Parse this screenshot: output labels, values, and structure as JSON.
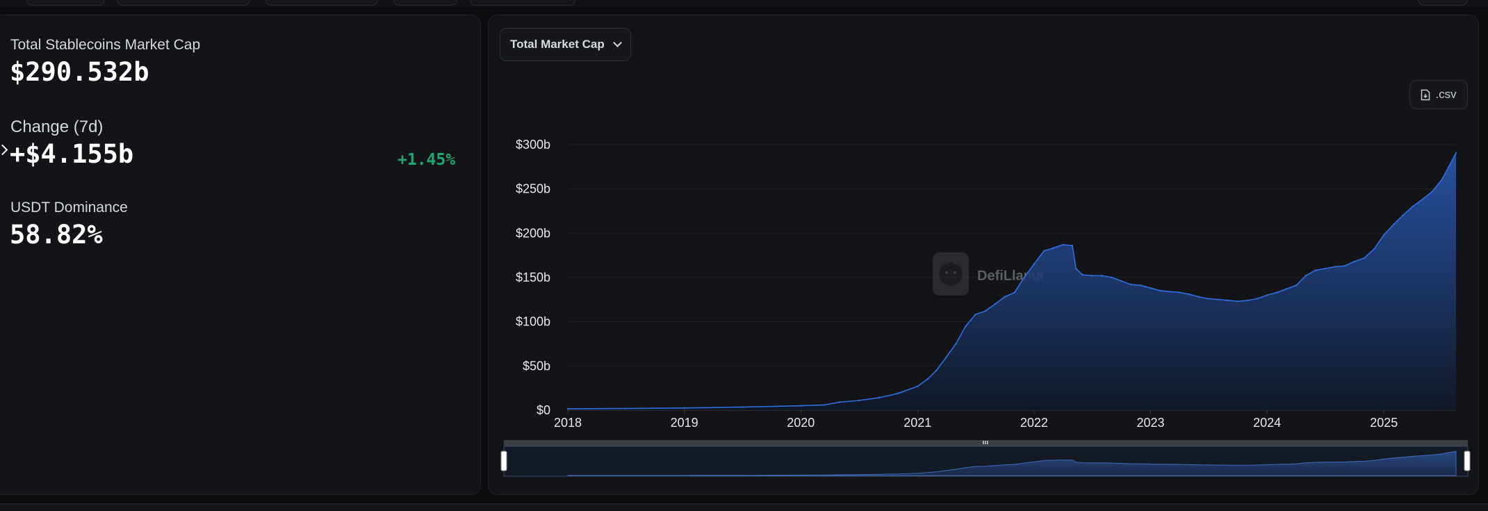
{
  "stats": {
    "market_cap_label": "Total Stablecoins Market Cap",
    "market_cap_value": "$290.532b",
    "change_label": "Change (7d)",
    "change_value": "+$4.155b",
    "change_pct": "+1.45%",
    "dominance_label": "USDT Dominance",
    "dominance_value": "58.82%"
  },
  "controls": {
    "metric_selected": "Total Market Cap",
    "csv_label": ".csv"
  },
  "watermark": "DefiLlama",
  "colors": {
    "series": "#2f6fdc",
    "positive": "#1fa76f",
    "background": "#131417"
  },
  "icons": [
    "chevron-down-icon",
    "download-file-icon",
    "llama-logo-icon",
    "chevron-right-icon",
    "range-handle-icon"
  ],
  "chart_data": {
    "type": "area",
    "title": "",
    "xlabel": "",
    "ylabel": "",
    "ylim": [
      0,
      300
    ],
    "yticks": [
      "$0",
      "$50b",
      "$100b",
      "$150b",
      "$200b",
      "$250b",
      "$300b"
    ],
    "xticks": [
      "2018",
      "2019",
      "2020",
      "2021",
      "2022",
      "2023",
      "2024",
      "2025"
    ],
    "xlim": [
      "2018-01-01",
      "2025-08-15"
    ],
    "grid": true,
    "legend": "none",
    "series": [
      {
        "x": [
          "2018-01-01",
          "2018-07-01",
          "2019-01-01",
          "2019-07-01",
          "2020-01-01",
          "2020-03-15",
          "2020-05-01",
          "2020-07-01",
          "2020-09-01",
          "2020-11-01",
          "2021-01-01",
          "2021-02-01",
          "2021-03-01",
          "2021-04-01",
          "2021-05-01",
          "2021-06-01",
          "2021-07-01",
          "2021-08-01",
          "2021-09-01",
          "2021-10-01",
          "2021-11-01",
          "2021-12-01",
          "2022-01-01",
          "2022-02-01",
          "2022-03-01",
          "2022-04-01",
          "2022-05-01",
          "2022-05-12",
          "2022-06-01",
          "2022-07-01",
          "2022-08-01",
          "2022-09-01",
          "2022-10-01",
          "2022-11-01",
          "2022-12-01",
          "2023-01-01",
          "2023-02-01",
          "2023-03-01",
          "2023-04-01",
          "2023-05-01",
          "2023-06-01",
          "2023-07-01",
          "2023-08-01",
          "2023-09-01",
          "2023-10-01",
          "2023-11-01",
          "2023-12-01",
          "2024-01-01",
          "2024-02-01",
          "2024-03-01",
          "2024-04-01",
          "2024-05-01",
          "2024-06-01",
          "2024-07-01",
          "2024-08-01",
          "2024-09-01",
          "2024-10-01",
          "2024-11-01",
          "2024-12-01",
          "2025-01-01",
          "2025-02-01",
          "2025-03-01",
          "2025-04-01",
          "2025-05-01",
          "2025-06-01",
          "2025-07-01",
          "2025-08-15"
        ],
        "values": [
          1.5,
          2,
          2.5,
          3.5,
          5,
          6,
          9,
          11,
          14,
          19,
          27,
          35,
          45,
          60,
          75,
          95,
          108,
          112,
          120,
          128,
          133,
          150,
          165,
          180,
          183,
          187,
          186,
          160,
          153,
          152,
          152,
          150,
          146,
          142,
          141,
          138,
          135,
          134,
          133,
          131,
          128,
          126,
          125,
          124,
          123,
          124,
          126,
          130,
          133,
          137,
          141,
          152,
          158,
          160,
          162,
          163,
          168,
          172,
          182,
          198,
          210,
          220,
          230,
          238,
          247,
          260,
          290.5
        ]
      }
    ]
  }
}
